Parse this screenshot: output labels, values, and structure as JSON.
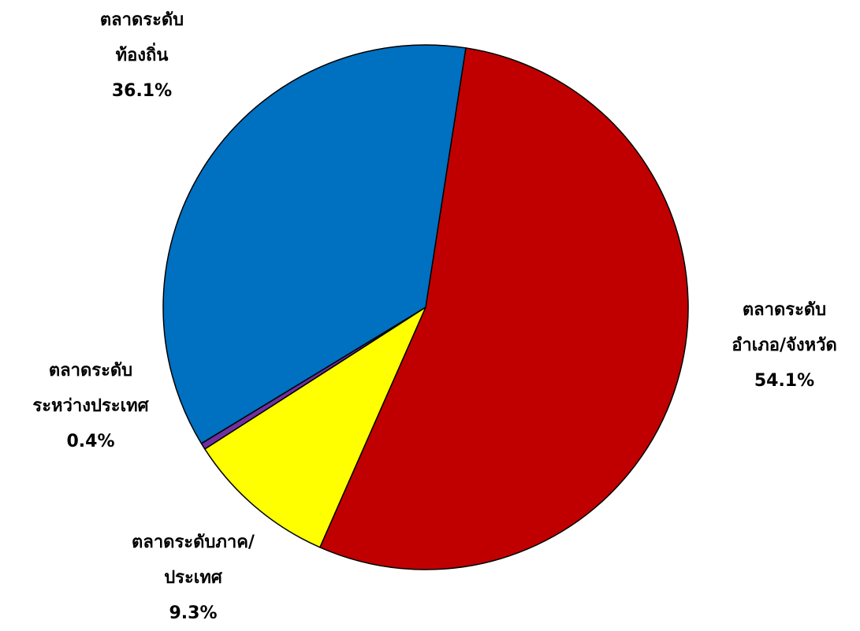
{
  "chart_data": {
    "type": "pie",
    "title": "",
    "slices": [
      {
        "line1": "ตลาดระดับ",
        "line2": "อำเภอ/จังหวัด",
        "pct_text": "54.1%",
        "value": 54.1,
        "color": "#C00000"
      },
      {
        "line1": "ตลาดระดับภาค/",
        "line2": "ประเทศ",
        "pct_text": "9.3%",
        "value": 9.3,
        "color": "#FFFF00"
      },
      {
        "line1": "ตลาดระดับ",
        "line2": "ระหว่างประเทศ",
        "pct_text": "0.4%",
        "value": 0.4,
        "color": "#7030A0"
      },
      {
        "line1": "ตลาดระดับ",
        "line2": "ท้องถิ่น",
        "pct_text": "36.1%",
        "value": 36.1,
        "color": "#0070C0"
      }
    ]
  }
}
